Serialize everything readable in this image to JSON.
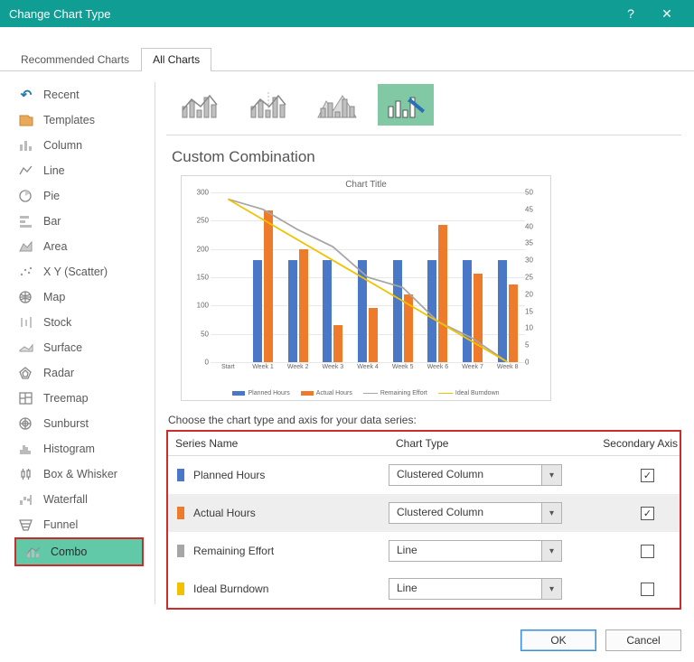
{
  "window": {
    "title": "Change Chart Type"
  },
  "tabs": {
    "recommended": "Recommended Charts",
    "all": "All Charts",
    "active": "all"
  },
  "accent": "#0f9d94",
  "sidebar": [
    {
      "key": "recent",
      "label": "Recent"
    },
    {
      "key": "templates",
      "label": "Templates"
    },
    {
      "key": "column",
      "label": "Column"
    },
    {
      "key": "line",
      "label": "Line"
    },
    {
      "key": "pie",
      "label": "Pie"
    },
    {
      "key": "bar",
      "label": "Bar"
    },
    {
      "key": "area",
      "label": "Area"
    },
    {
      "key": "xy",
      "label": "X Y (Scatter)"
    },
    {
      "key": "map",
      "label": "Map"
    },
    {
      "key": "stock",
      "label": "Stock"
    },
    {
      "key": "surface",
      "label": "Surface"
    },
    {
      "key": "radar",
      "label": "Radar"
    },
    {
      "key": "treemap",
      "label": "Treemap"
    },
    {
      "key": "sunburst",
      "label": "Sunburst"
    },
    {
      "key": "histogram",
      "label": "Histogram"
    },
    {
      "key": "box",
      "label": "Box & Whisker"
    },
    {
      "key": "waterfall",
      "label": "Waterfall"
    },
    {
      "key": "funnel",
      "label": "Funnel"
    },
    {
      "key": "combo",
      "label": "Combo",
      "active": true
    }
  ],
  "section_title": "Custom Combination",
  "chart": {
    "title": "Chart Title",
    "categories": [
      "Start",
      "Week 1",
      "Week 2",
      "Week 3",
      "Week 4",
      "Week 5",
      "Week 6",
      "Week 7",
      "Week 8"
    ],
    "y_left": {
      "min": 0,
      "max": 300,
      "step": 50
    },
    "y_right": {
      "min": 0,
      "max": 50,
      "step": 5
    },
    "colors": {
      "planned": "#4a77c6",
      "actual": "#ee7a2c",
      "remaining": "#a6a6a6",
      "ideal": "#f2c200",
      "grid": "#e8e8e8"
    },
    "planned": [
      null,
      180,
      180,
      180,
      180,
      180,
      180,
      180,
      180
    ],
    "actual": [
      null,
      268,
      200,
      66,
      95,
      120,
      242,
      156,
      138
    ],
    "remaining": [
      48,
      45,
      39,
      34,
      25,
      22,
      12,
      7,
      0
    ],
    "ideal": [
      48,
      null,
      null,
      null,
      null,
      null,
      null,
      null,
      0
    ],
    "legend": {
      "planned": "Planned Hours",
      "actual": "Actual Hours",
      "remaining": "Remaining Effort",
      "ideal": "Ideal Burndown"
    }
  },
  "instruction": "Choose the chart type and axis for your data series:",
  "series_table": {
    "headers": {
      "name": "Series Name",
      "type": "Chart Type",
      "axis": "Secondary Axis"
    },
    "rows": [
      {
        "label": "Planned Hours",
        "color": "#4a77c6",
        "type": "Clustered Column",
        "secondary": true,
        "alt": false
      },
      {
        "label": "Actual Hours",
        "color": "#ee7a2c",
        "type": "Clustered Column",
        "secondary": true,
        "alt": true
      },
      {
        "label": "Remaining Effort",
        "color": "#a6a6a6",
        "type": "Line",
        "secondary": false,
        "alt": false
      },
      {
        "label": "Ideal Burndown",
        "color": "#f2c200",
        "type": "Line",
        "secondary": false,
        "alt": false
      }
    ]
  },
  "buttons": {
    "ok": "OK",
    "cancel": "Cancel"
  }
}
